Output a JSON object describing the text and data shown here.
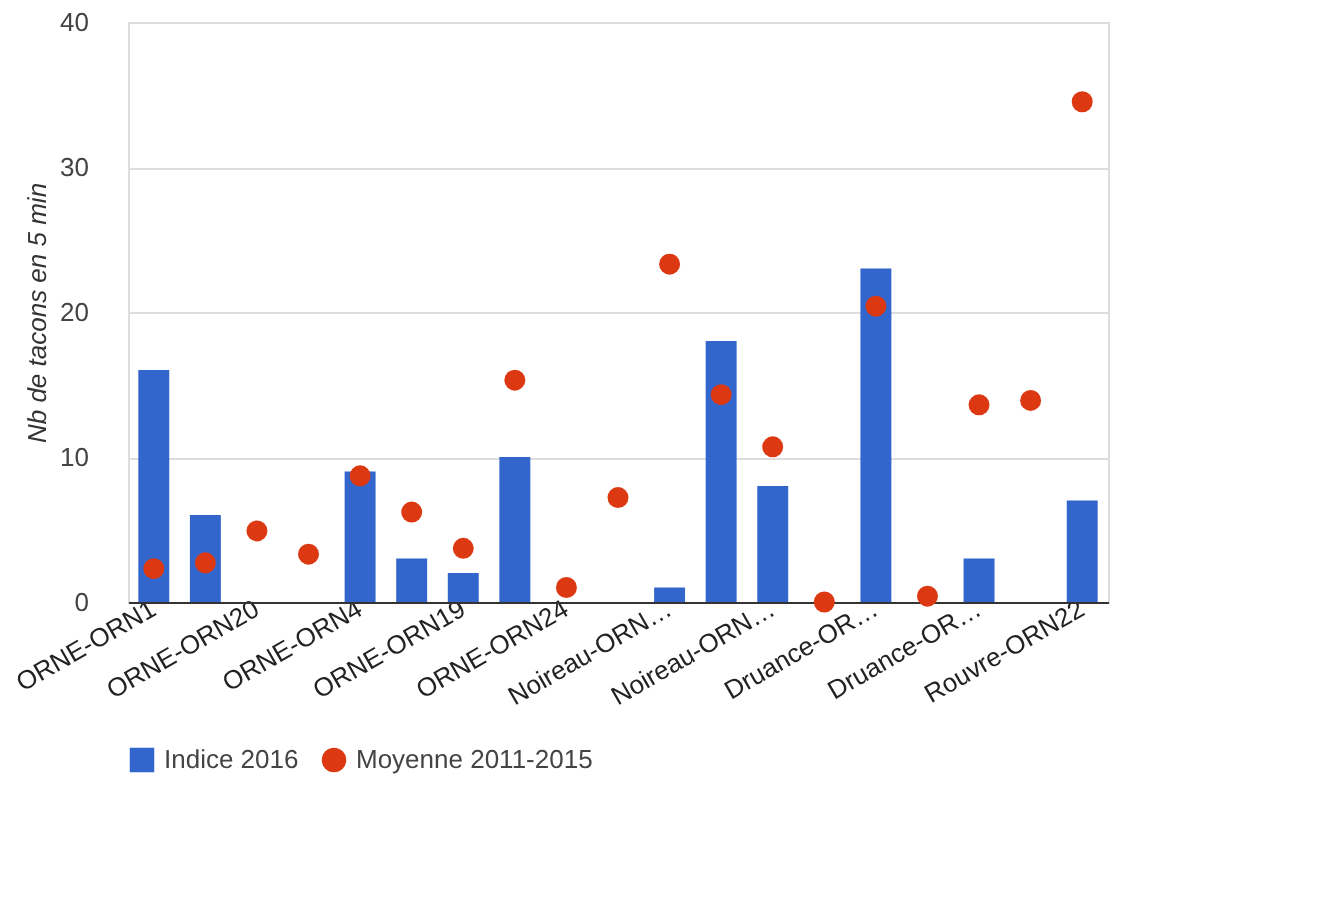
{
  "chart_data": {
    "type": "bar",
    "categories": [
      "ORNE-ORN1",
      null,
      "ORNE-ORN20",
      null,
      "ORNE-ORN4",
      null,
      "ORNE-ORN19",
      null,
      "ORNE-ORN24",
      null,
      "Noireau-ORN…",
      null,
      "Noireau-ORN…",
      null,
      "Druance-OR…",
      null,
      "Druance-OR…",
      null,
      "Rouvre-ORN22"
    ],
    "series": [
      {
        "name": "Indice 2016",
        "color": "#3366cc",
        "values": [
          16,
          6,
          0,
          0,
          9,
          3,
          2,
          10,
          0,
          0,
          1,
          18,
          8,
          0,
          23,
          0,
          3,
          0,
          7
        ]
      },
      {
        "name": "Moyenne 2011-2015",
        "type": "scatter",
        "marker": "circle",
        "color": "#dc3912",
        "values": [
          2.3,
          2.7,
          4.9,
          3.3,
          8.7,
          6.2,
          3.7,
          15.3,
          1.0,
          7.2,
          23.3,
          14.3,
          10.7,
          0,
          20.4,
          0.4,
          13.6,
          13.9,
          34.5
        ]
      }
    ],
    "ylabel": "Nb de tacons en 5 min",
    "ylim": [
      0,
      40
    ],
    "yticks": [
      0,
      10,
      20,
      30,
      40
    ],
    "grid": "y",
    "legend": "bottom"
  }
}
